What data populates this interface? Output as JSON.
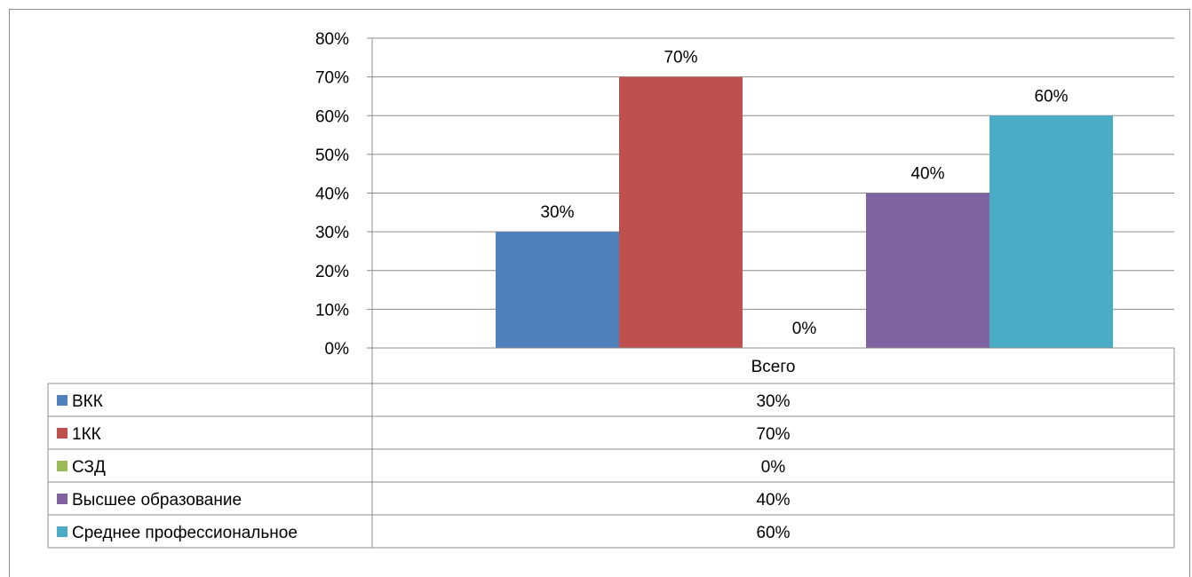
{
  "chart_data": {
    "type": "bar",
    "categories": [
      "Всего"
    ],
    "series": [
      {
        "name": "ВКК",
        "values": [
          30
        ],
        "color": "#4f81bd"
      },
      {
        "name": "1КК",
        "values": [
          70
        ],
        "color": "#c0504d"
      },
      {
        "name": "СЗД",
        "values": [
          0
        ],
        "color": "#9bbb59"
      },
      {
        "name": "Высшее образование",
        "values": [
          40
        ],
        "color": "#8064a2"
      },
      {
        "name": "Среднее профессиональное",
        "values": [
          60
        ],
        "color": "#4bacc6"
      }
    ],
    "data_labels": [
      "30%",
      "70%",
      "0%",
      "40%",
      "60%"
    ],
    "table_values": [
      "30%",
      "70%",
      "0%",
      "40%",
      "60%"
    ],
    "yticks": [
      "0%",
      "10%",
      "20%",
      "30%",
      "40%",
      "50%",
      "60%",
      "70%",
      "80%"
    ],
    "ylim": [
      0,
      80
    ],
    "grid": true,
    "legend": "data-table",
    "title": "",
    "xlabel": "",
    "ylabel": ""
  }
}
